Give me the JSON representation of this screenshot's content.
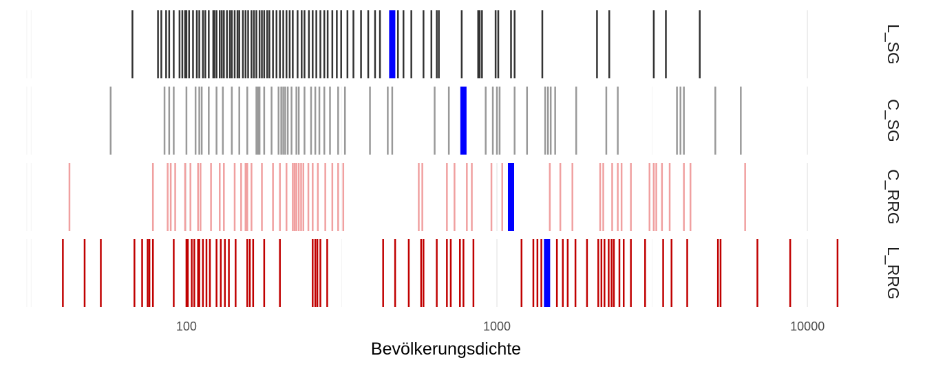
{
  "chart_data": {
    "type": "rug",
    "xlabel": "Bevölkerungsdichte",
    "x_scale": "log10",
    "xlim": [
      30,
      13500
    ],
    "x_ticks": [
      100,
      1000,
      10000
    ],
    "x_tick_labels": [
      "100",
      "1000",
      "10000"
    ],
    "grid": true,
    "colors": {
      "L_SG": "#333333",
      "C_SG": "#999999",
      "C_RRG": "#f0a0a0",
      "L_RRG": "#c00000",
      "highlight": "#0000ff"
    },
    "series": [
      {
        "name": "L_SG",
        "highlight": 460,
        "values": [
          67,
          81,
          83,
          86,
          88,
          91,
          95,
          97,
          99,
          100,
          102,
          105,
          108,
          110,
          113,
          115,
          118,
          122,
          123,
          125,
          128,
          130,
          132,
          135,
          138,
          140,
          143,
          146,
          148,
          152,
          155,
          158,
          162,
          165,
          168,
          172,
          175,
          178,
          182,
          185,
          190,
          195,
          200,
          205,
          210,
          215,
          220,
          228,
          235,
          240,
          248,
          255,
          262,
          270,
          278,
          285,
          295,
          305,
          315,
          330,
          345,
          365,
          385,
          405,
          420,
          480,
          500,
          530,
          580,
          615,
          640,
          650,
          770,
          870,
          880,
          895,
          990,
          1010,
          1110,
          1140,
          1400,
          2100,
          2300,
          3200,
          3500,
          4500
        ]
      },
      {
        "name": "C_SG",
        "highlight": 780,
        "values": [
          57,
          85,
          88,
          91,
          100,
          107,
          110,
          112,
          118,
          125,
          131,
          140,
          148,
          157,
          168,
          170,
          172,
          178,
          188,
          198,
          202,
          205,
          208,
          212,
          218,
          226,
          230,
          240,
          252,
          260,
          268,
          278,
          290,
          308,
          324,
          390,
          445,
          460,
          630,
          700,
          920,
          970,
          1000,
          1020,
          1140,
          1250,
          1430,
          1460,
          1490,
          1540,
          1800,
          2250,
          2450,
          3800,
          3900,
          4000,
          5050,
          6100
        ]
      },
      {
        "name": "C_RRG",
        "highlight": 1110,
        "values": [
          42,
          78,
          87,
          89,
          92,
          99,
          103,
          109,
          111,
          120,
          128,
          132,
          143,
          150,
          155,
          157,
          162,
          175,
          190,
          200,
          210,
          220,
          223,
          226,
          230,
          234,
          238,
          247,
          255,
          265,
          280,
          295,
          308,
          320,
          560,
          575,
          690,
          730,
          800,
          830,
          960,
          1040,
          1120,
          1480,
          1600,
          1750,
          2150,
          2200,
          2350,
          2450,
          2520,
          2700,
          3100,
          3200,
          3260,
          3400,
          3600,
          4000,
          4200,
          6300
        ]
      },
      {
        "name": "L_RRG",
        "highlight": 1450,
        "values": [
          40,
          47,
          53,
          68,
          72,
          75,
          76,
          78,
          91,
          100,
          101,
          104,
          106,
          109,
          110,
          113,
          116,
          119,
          125,
          129,
          133,
          137,
          144,
          157,
          160,
          164,
          178,
          200,
          255,
          260,
          264,
          270,
          284,
          430,
          470,
          520,
          570,
          580,
          640,
          690,
          710,
          760,
          780,
          840,
          1200,
          1310,
          1350,
          1390,
          1560,
          1630,
          1690,
          1790,
          1950,
          2120,
          2170,
          2220,
          2290,
          2340,
          2380,
          2480,
          2560,
          2700,
          3000,
          3430,
          3650,
          4100,
          5150,
          5250,
          6900,
          8800,
          12500
        ]
      }
    ]
  }
}
